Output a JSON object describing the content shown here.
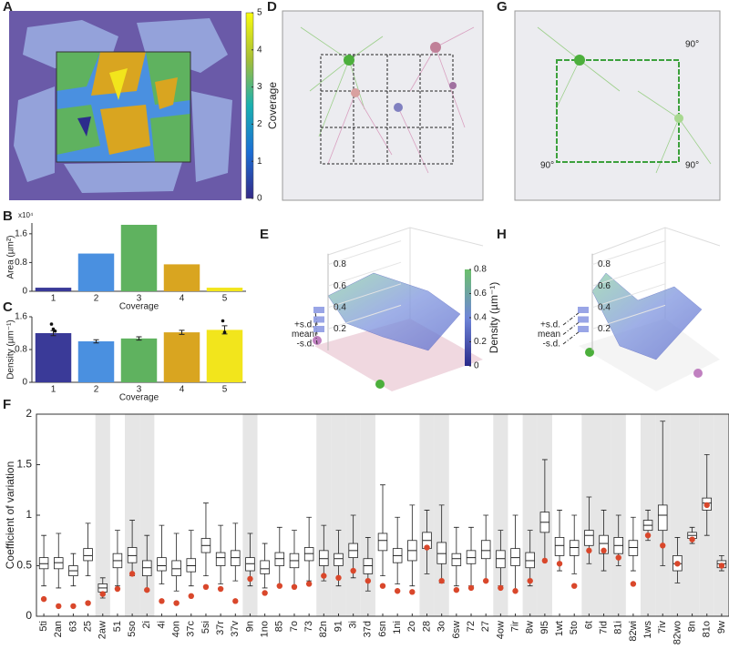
{
  "panel_labels": [
    "A",
    "B",
    "C",
    "D",
    "E",
    "F",
    "G",
    "H"
  ],
  "angle_labels": [
    "90°",
    "90°",
    "90°"
  ],
  "chart_data": [
    {
      "type": "colorbar",
      "label": "Coverage",
      "ylim": [
        0,
        5
      ],
      "yticks": [
        0,
        1,
        2,
        3,
        4,
        5
      ]
    },
    {
      "type": "bar",
      "ylabel": "Area (µm²)",
      "xlabel": "Coverage",
      "multiplier": "x10⁴",
      "categories": [
        "1",
        "2",
        "3",
        "4",
        "5"
      ],
      "values": [
        1000,
        10500,
        18500,
        7500,
        1000
      ],
      "colors": [
        "#3a3a98",
        "#4a90e0",
        "#5fb25f",
        "#d9a520",
        "#f2e51c"
      ],
      "ylim": [
        0,
        19000
      ],
      "yticks": [
        0,
        {
          "value": 8000,
          "label": "0.8"
        },
        {
          "value": 16000,
          "label": "1.6"
        }
      ]
    },
    {
      "type": "bar",
      "ylabel": "Density (µm⁻¹)",
      "xlabel": "Coverage",
      "categories": [
        "1",
        "2",
        "3",
        "4",
        "5"
      ],
      "values": [
        1.2,
        1.0,
        1.07,
        1.22,
        1.28
      ],
      "errors": [
        0.06,
        0.04,
        0.04,
        0.05,
        0.1
      ],
      "points": [
        [
          1.42,
          1.3,
          1.25
        ],
        [],
        [],
        [],
        [
          1.5,
          1.22
        ]
      ],
      "colors": [
        "#3a3a98",
        "#4a90e0",
        "#5fb25f",
        "#d9a520",
        "#f2e51c"
      ],
      "ylim": [
        0,
        1.6
      ],
      "yticks": [
        0,
        0.8,
        1.6
      ]
    },
    {
      "type": "surface",
      "zlim": [
        0,
        0.9
      ],
      "zticks": [
        0.2,
        0.4,
        0.6,
        0.8
      ],
      "sd_labels": [
        "+s.d.",
        "mean",
        "-s.d."
      ],
      "colorbar": {
        "label": "Density (µm⁻¹)",
        "lim": [
          0,
          0.8
        ],
        "ticks": [
          0,
          0.2,
          0.4,
          0.6,
          0.8
        ]
      }
    },
    {
      "type": "surface",
      "zlim": [
        0,
        0.9
      ],
      "zticks": [
        0.2,
        0.4,
        0.6,
        0.8
      ],
      "sd_labels": [
        "+s.d.",
        "mean",
        "-s.d."
      ]
    },
    {
      "type": "box",
      "ylabel": "Coefficient of variation",
      "ylim": [
        0,
        2
      ],
      "yticks": [
        0,
        0.5,
        1,
        1.5,
        2
      ],
      "box_color": "#222",
      "dot_color": "#d9472b",
      "shade_color": "#e6e6e6",
      "categories": [
        "5ti",
        "2an",
        "63",
        "25",
        "2aw",
        "51",
        "5so",
        "2i",
        "4i",
        "4on",
        "37c",
        "5si",
        "37r",
        "37v",
        "9n",
        "1no",
        "85",
        "7o",
        "73",
        "82n",
        "91",
        "3i",
        "37d",
        "6sn",
        "1ni",
        "2o",
        "28",
        "3o",
        "6sw",
        "72",
        "27",
        "4ow",
        "7ir",
        "8w",
        "9l5",
        "1wt",
        "5to",
        "6t",
        "7id",
        "81i",
        "82wi",
        "1ws",
        "7iv",
        "82wo",
        "8n",
        "81o",
        "9w"
      ],
      "shaded": [
        false,
        false,
        false,
        false,
        true,
        false,
        true,
        true,
        false,
        false,
        false,
        false,
        false,
        false,
        true,
        false,
        false,
        false,
        false,
        true,
        true,
        true,
        true,
        false,
        false,
        false,
        true,
        true,
        false,
        false,
        false,
        true,
        false,
        true,
        true,
        false,
        false,
        true,
        true,
        true,
        false,
        true,
        true,
        true,
        true,
        true,
        true
      ],
      "median": [
        0.52,
        0.53,
        0.45,
        0.6,
        0.28,
        0.55,
        0.6,
        0.48,
        0.5,
        0.47,
        0.5,
        0.7,
        0.58,
        0.58,
        0.52,
        0.47,
        0.57,
        0.55,
        0.62,
        0.57,
        0.57,
        0.65,
        0.5,
        0.75,
        0.6,
        0.65,
        0.75,
        0.62,
        0.57,
        0.58,
        0.65,
        0.57,
        0.58,
        0.55,
        0.93,
        0.7,
        0.68,
        0.8,
        0.72,
        0.7,
        0.68,
        0.9,
        1.0,
        0.52,
        0.8,
        1.12,
        0.52
      ],
      "q1": [
        0.47,
        0.47,
        0.4,
        0.55,
        0.24,
        0.48,
        0.53,
        0.4,
        0.45,
        0.4,
        0.44,
        0.63,
        0.5,
        0.5,
        0.45,
        0.42,
        0.5,
        0.48,
        0.55,
        0.5,
        0.5,
        0.58,
        0.42,
        0.65,
        0.53,
        0.55,
        0.67,
        0.52,
        0.5,
        0.52,
        0.57,
        0.48,
        0.5,
        0.48,
        0.83,
        0.6,
        0.6,
        0.7,
        0.62,
        0.62,
        0.6,
        0.85,
        0.85,
        0.45,
        0.77,
        1.05,
        0.48
      ],
      "q3": [
        0.58,
        0.58,
        0.5,
        0.67,
        0.32,
        0.62,
        0.68,
        0.55,
        0.58,
        0.55,
        0.57,
        0.77,
        0.63,
        0.65,
        0.58,
        0.55,
        0.63,
        0.62,
        0.68,
        0.65,
        0.62,
        0.72,
        0.57,
        0.82,
        0.67,
        0.75,
        0.83,
        0.73,
        0.62,
        0.65,
        0.75,
        0.65,
        0.67,
        0.63,
        1.03,
        0.78,
        0.75,
        0.85,
        0.8,
        0.78,
        0.75,
        0.95,
        1.1,
        0.6,
        0.83,
        1.17,
        0.55
      ],
      "whisker_low": [
        0.3,
        0.28,
        0.3,
        0.4,
        0.18,
        0.3,
        0.4,
        0.25,
        0.32,
        0.25,
        0.3,
        0.4,
        0.32,
        0.35,
        0.3,
        0.28,
        0.3,
        0.3,
        0.35,
        0.35,
        0.3,
        0.38,
        0.25,
        0.4,
        0.32,
        0.3,
        0.42,
        0.33,
        0.3,
        0.3,
        0.35,
        0.3,
        0.25,
        0.3,
        0.55,
        0.45,
        0.42,
        0.52,
        0.45,
        0.5,
        0.45,
        0.75,
        0.5,
        0.33,
        0.72,
        0.8,
        0.45
      ],
      "whisker_high": [
        0.8,
        0.82,
        0.62,
        0.92,
        0.38,
        0.85,
        0.95,
        0.8,
        0.9,
        0.82,
        0.85,
        1.12,
        0.9,
        0.92,
        0.82,
        0.72,
        0.88,
        0.85,
        0.98,
        0.9,
        0.85,
        1.0,
        0.78,
        1.3,
        0.98,
        1.1,
        1.05,
        1.1,
        0.88,
        0.88,
        1.0,
        0.85,
        1.0,
        0.85,
        1.55,
        1.05,
        1.0,
        1.18,
        1.05,
        1.0,
        0.98,
        1.05,
        1.93,
        0.78,
        0.88,
        1.6,
        0.6
      ],
      "dots": [
        0.17,
        0.1,
        0.1,
        0.13,
        0.22,
        0.27,
        0.42,
        0.26,
        0.15,
        0.13,
        0.2,
        0.29,
        0.27,
        0.15,
        0.37,
        0.23,
        0.3,
        0.29,
        0.32,
        0.4,
        0.38,
        0.45,
        0.35,
        0.3,
        0.25,
        0.24,
        0.68,
        0.35,
        0.26,
        0.28,
        0.35,
        0.28,
        0.25,
        0.35,
        0.55,
        0.52,
        0.3,
        0.65,
        0.65,
        0.58,
        0.32,
        0.8,
        0.7,
        0.52,
        0.76,
        1.1,
        0.5
      ]
    }
  ]
}
